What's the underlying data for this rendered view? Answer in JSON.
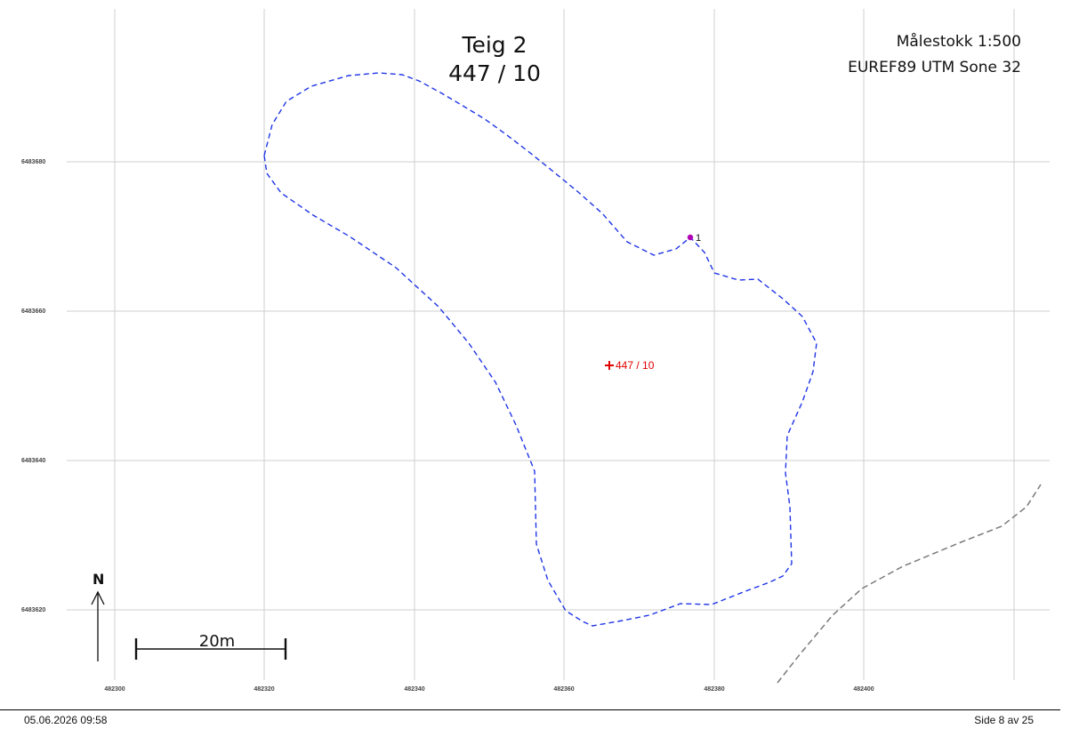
{
  "header": {
    "title_line1": "Teig 2",
    "title_line2": "447 / 10",
    "scale": "Målestokk 1:500",
    "crs": "EUREF89 UTM Sone 32"
  },
  "grid": {
    "easting_labels": [
      "482300",
      "482320",
      "482340",
      "482360",
      "482380",
      "482400"
    ],
    "northing_labels": [
      "6483680",
      "6483660",
      "6483640",
      "6483620"
    ]
  },
  "parcel": {
    "label": "447 / 10",
    "boundary_color": "#1f35e6",
    "label_color": "#e00000"
  },
  "boundary_point": {
    "label": "1",
    "color": "#b400b4"
  },
  "north_arrow": {
    "label": "N"
  },
  "scale_bar": {
    "label": "20m"
  },
  "footer": {
    "datetime": "05.06.2026 09:58",
    "page": "Side 8 av 25"
  }
}
